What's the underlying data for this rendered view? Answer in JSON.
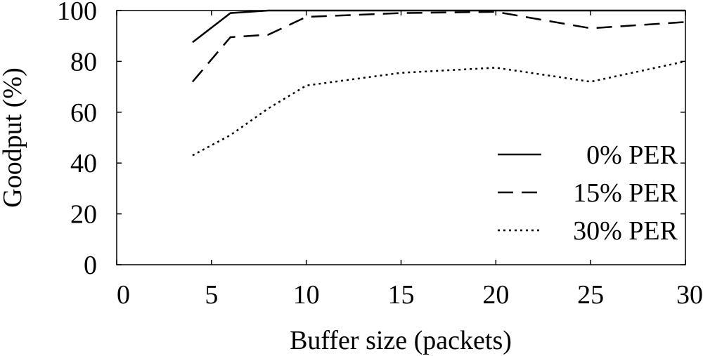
{
  "chart_data": {
    "type": "line",
    "title": "",
    "xlabel": "Buffer size (packets)",
    "ylabel": "Goodput (%)",
    "xlim": [
      0,
      30
    ],
    "ylim": [
      0,
      100
    ],
    "xticks": [
      0,
      5,
      10,
      15,
      20,
      25,
      30
    ],
    "yticks": [
      0,
      20,
      40,
      60,
      80,
      100
    ],
    "grid": false,
    "legend_position": "right",
    "series": [
      {
        "name": "0% PER",
        "style": "solid",
        "color": "#000000",
        "x": [
          4,
          6,
          8,
          10,
          15,
          20,
          25,
          30
        ],
        "y": [
          87.5,
          99,
          100,
          100,
          100,
          100,
          100,
          100
        ]
      },
      {
        "name": "15% PER",
        "style": "dashed",
        "color": "#000000",
        "x": [
          4,
          6,
          8,
          10,
          15,
          20,
          25,
          30
        ],
        "y": [
          72,
          89.5,
          90.5,
          97.5,
          99,
          99.5,
          93,
          95.5
        ]
      },
      {
        "name": "30% PER",
        "style": "dotted",
        "color": "#000000",
        "x": [
          4,
          6,
          8,
          10,
          15,
          20,
          25,
          30
        ],
        "y": [
          43,
          51,
          61.5,
          70.5,
          75.5,
          77.5,
          72,
          80
        ]
      }
    ]
  }
}
